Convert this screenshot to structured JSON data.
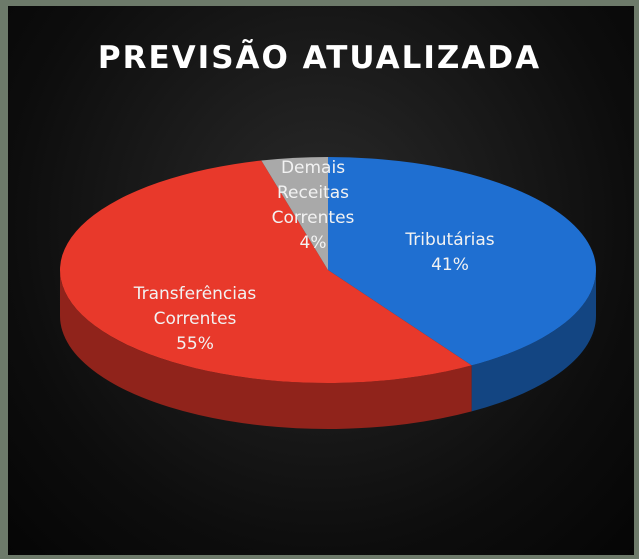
{
  "chart_data": {
    "type": "pie",
    "title": "PREVISÃO ATUALIZADA",
    "categories": [
      "Tributárias",
      "Transferências Correntes",
      "Demais Receitas Correntes"
    ],
    "values": [
      41,
      55,
      4
    ],
    "value_labels": [
      "41%",
      "55%",
      "4%"
    ],
    "colors": [
      "#1f6fd1",
      "#e8392b",
      "#a9a9a9"
    ]
  }
}
